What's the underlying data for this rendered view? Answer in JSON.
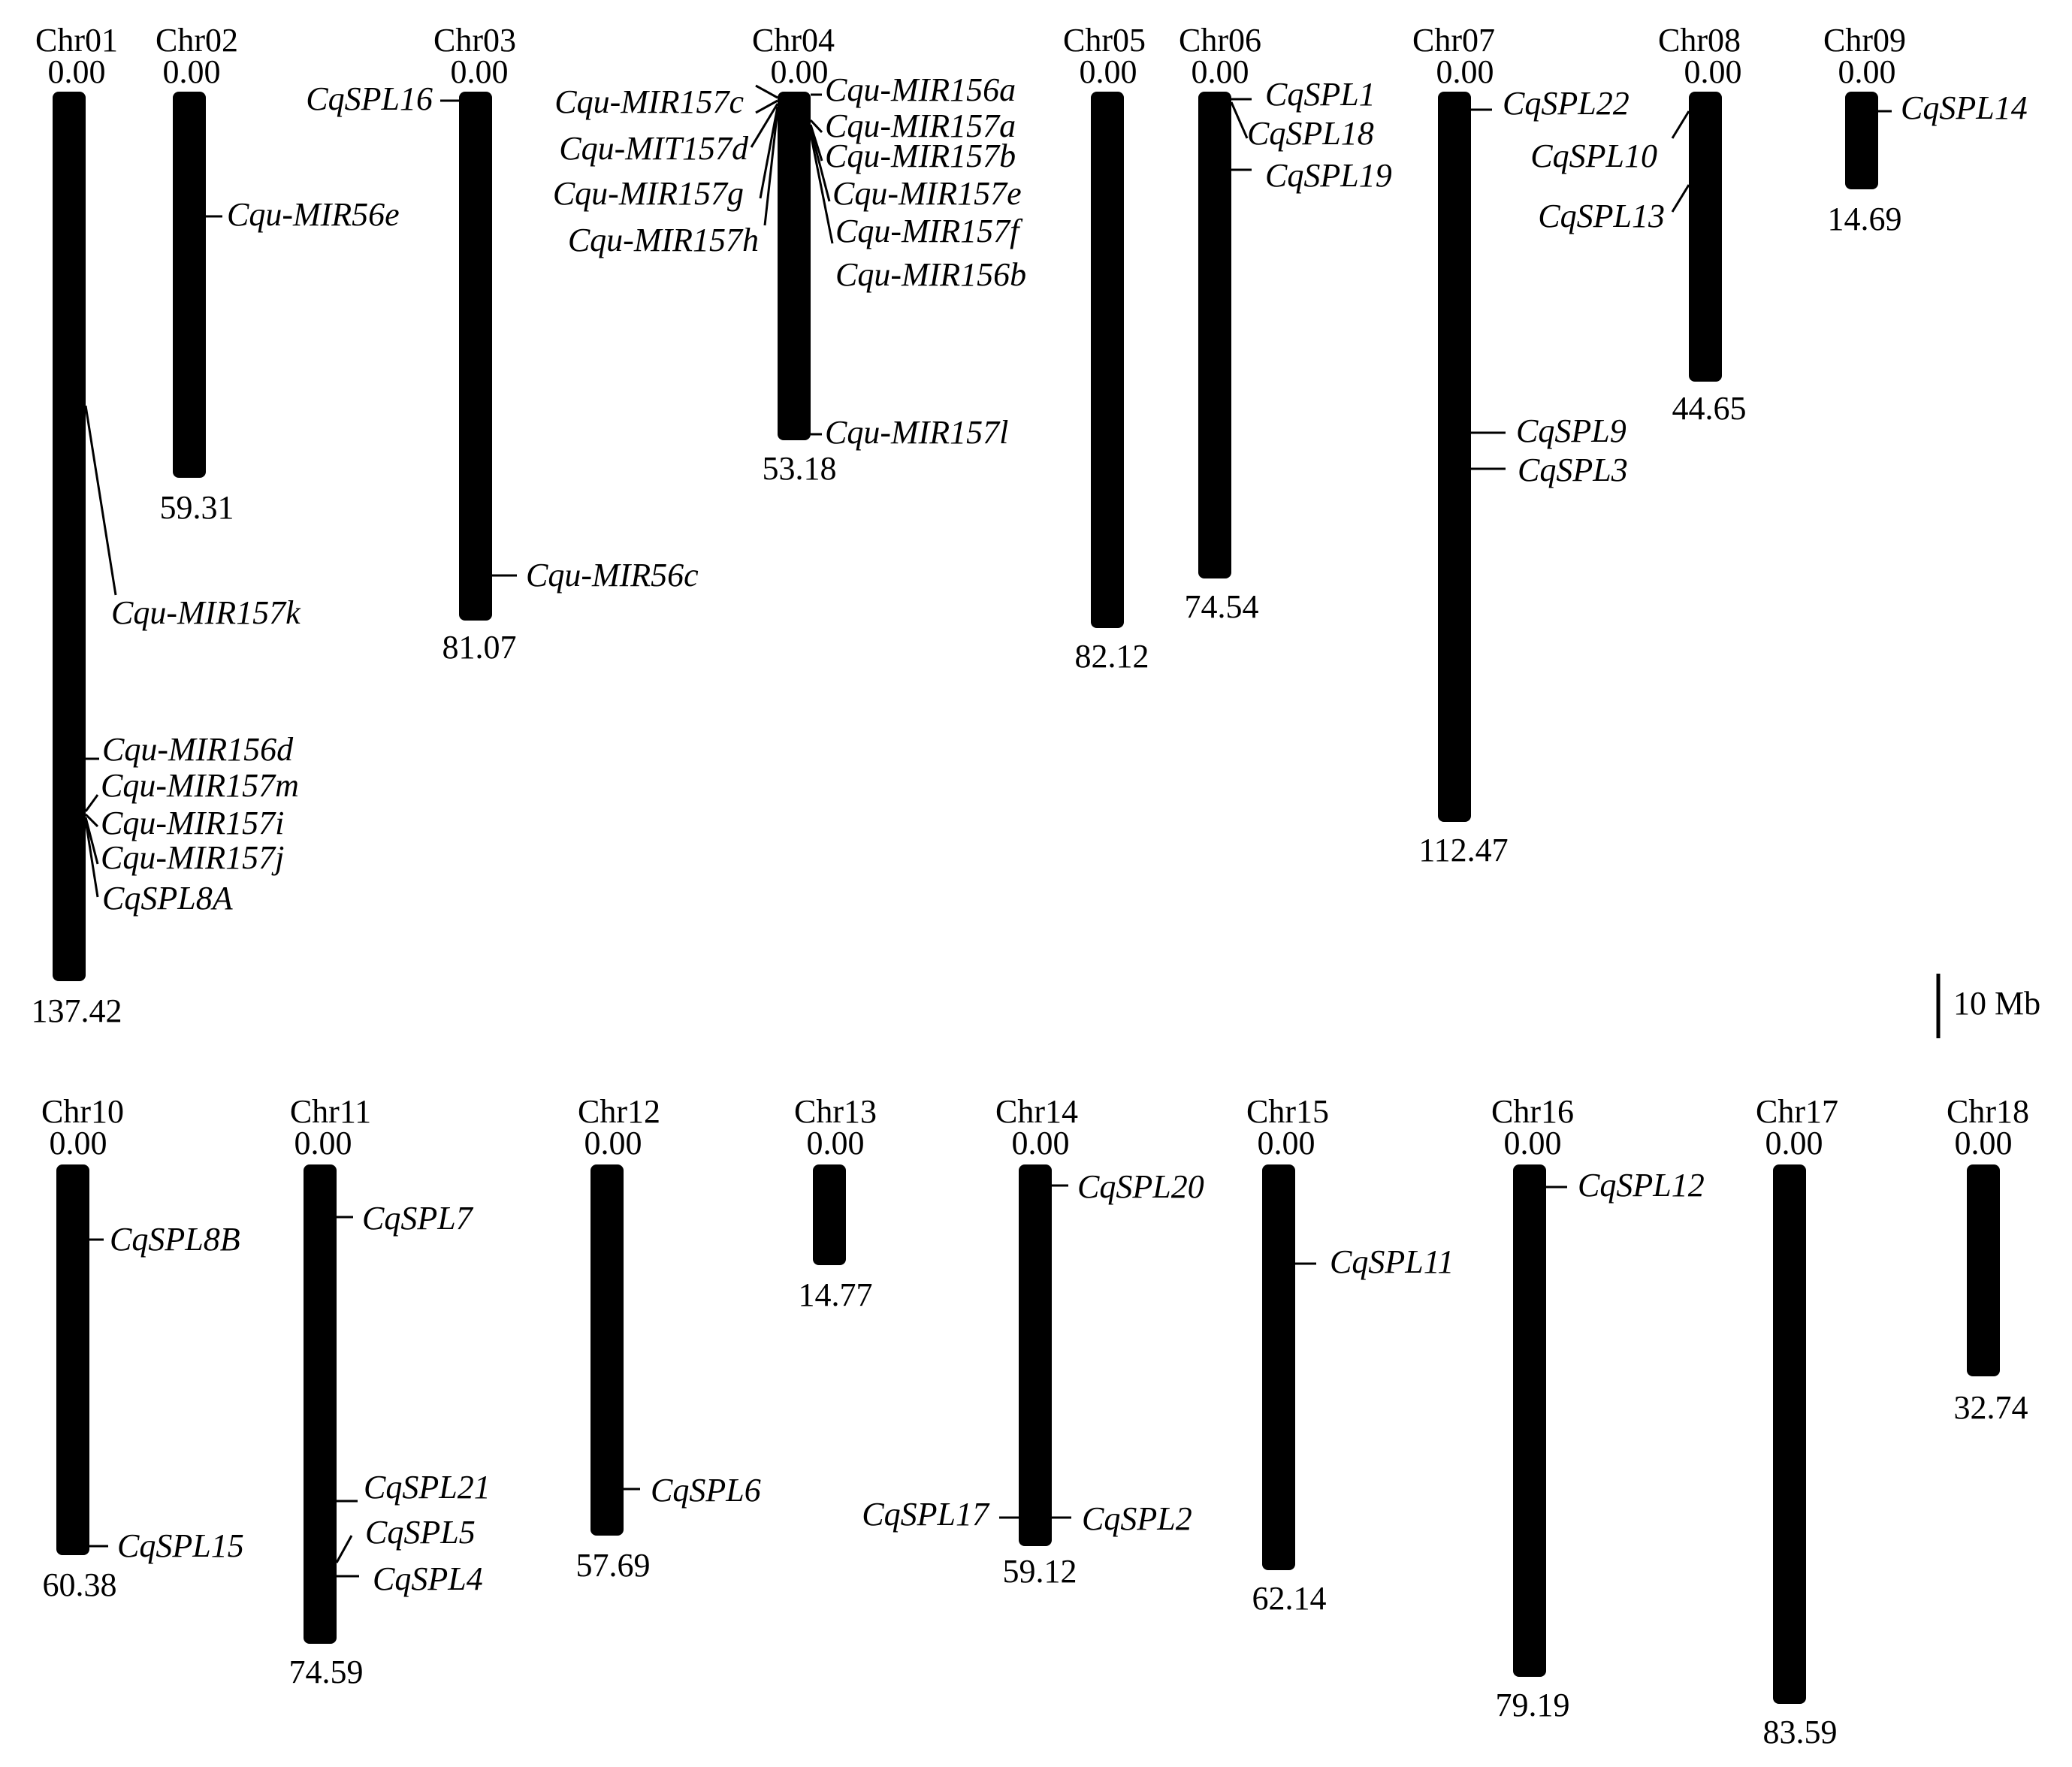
{
  "figure": {
    "scale_bar": {
      "label": "10 Mb",
      "length_mb": 10
    },
    "chromosomes": [
      {
        "name": "Chr01",
        "start": "0.00",
        "end": "137.42",
        "length_mb": 137.42
      },
      {
        "name": "Chr02",
        "start": "0.00",
        "end": "59.31",
        "length_mb": 59.31
      },
      {
        "name": "Chr03",
        "start": "0.00",
        "end": "81.07",
        "length_mb": 81.07
      },
      {
        "name": "Chr04",
        "start": "0.00",
        "end": "53.18",
        "length_mb": 53.18
      },
      {
        "name": "Chr05",
        "start": "0.00",
        "end": "82.12",
        "length_mb": 82.12
      },
      {
        "name": "Chr06",
        "start": "0.00",
        "end": "74.54",
        "length_mb": 74.54
      },
      {
        "name": "Chr07",
        "start": "0.00",
        "end": "112.47",
        "length_mb": 112.47
      },
      {
        "name": "Chr08",
        "start": "0.00",
        "end": "44.65",
        "length_mb": 44.65
      },
      {
        "name": "Chr09",
        "start": "0.00",
        "end": "14.69",
        "length_mb": 14.69
      },
      {
        "name": "Chr10",
        "start": "0.00",
        "end": "60.38",
        "length_mb": 60.38
      },
      {
        "name": "Chr11",
        "start": "0.00",
        "end": "74.59",
        "length_mb": 74.59
      },
      {
        "name": "Chr12",
        "start": "0.00",
        "end": "57.69",
        "length_mb": 57.69
      },
      {
        "name": "Chr13",
        "start": "0.00",
        "end": "14.77",
        "length_mb": 14.77
      },
      {
        "name": "Chr14",
        "start": "0.00",
        "end": "59.12",
        "length_mb": 59.12
      },
      {
        "name": "Chr15",
        "start": "0.00",
        "end": "62.14",
        "length_mb": 62.14
      },
      {
        "name": "Chr16",
        "start": "0.00",
        "end": "79.19",
        "length_mb": 79.19
      },
      {
        "name": "Chr17",
        "start": "0.00",
        "end": "83.59",
        "length_mb": 83.59
      },
      {
        "name": "Chr18",
        "start": "0.00",
        "end": "32.74",
        "length_mb": 32.74
      }
    ],
    "genes": [
      {
        "chr": "Chr01",
        "name": "Cqu-MIR157k",
        "pos_mb": 48.0
      },
      {
        "chr": "Chr01",
        "name": "Cqu-MIR156d",
        "pos_mb": 102.5
      },
      {
        "chr": "Chr01",
        "name": "Cqu-MIR157m",
        "pos_mb": 108.5
      },
      {
        "chr": "Chr01",
        "name": "Cqu-MIR157i",
        "pos_mb": 109.0
      },
      {
        "chr": "Chr01",
        "name": "Cqu-MIR157j",
        "pos_mb": 111.0
      },
      {
        "chr": "Chr01",
        "name": "CqSPL8A",
        "pos_mb": 114.5
      },
      {
        "chr": "Chr02",
        "name": "Cqu-MIR56e",
        "pos_mb": 19.2
      },
      {
        "chr": "Chr03",
        "name": "CqSPL16",
        "pos_mb": 1.5
      },
      {
        "chr": "Chr03",
        "name": "Cqu-MIR56c",
        "pos_mb": 75.0
      },
      {
        "chr": "Chr04",
        "name": "Cqu-MIR157c",
        "pos_mb": 1.0
      },
      {
        "chr": "Chr04",
        "name": "Cqu-MIT157d",
        "pos_mb": 1.2
      },
      {
        "chr": "Chr04",
        "name": "Cqu-MIR157g",
        "pos_mb": 1.4
      },
      {
        "chr": "Chr04",
        "name": "Cqu-MIR157h",
        "pos_mb": 1.6
      },
      {
        "chr": "Chr04",
        "name": "Cqu-MIR156a",
        "pos_mb": 0.5
      },
      {
        "chr": "Chr04",
        "name": "Cqu-MIR157a",
        "pos_mb": 4.8
      },
      {
        "chr": "Chr04",
        "name": "Cqu-MIR157b",
        "pos_mb": 5.4
      },
      {
        "chr": "Chr04",
        "name": "Cqu-MIR157e",
        "pos_mb": 6.0
      },
      {
        "chr": "Chr04",
        "name": "Cqu-MIR157f",
        "pos_mb": 6.5
      },
      {
        "chr": "Chr04",
        "name": "Cqu-MIR156b",
        "pos_mb": 7.0
      },
      {
        "chr": "Chr04",
        "name": "Cqu-MIR157l",
        "pos_mb": 53.0
      },
      {
        "chr": "Chr06",
        "name": "CqSPL1",
        "pos_mb": 1.2
      },
      {
        "chr": "Chr06",
        "name": "CqSPL18",
        "pos_mb": 1.5
      },
      {
        "chr": "Chr06",
        "name": "CqSPL19",
        "pos_mb": 12.0
      },
      {
        "chr": "Chr07",
        "name": "CqSPL22",
        "pos_mb": 2.0
      },
      {
        "chr": "Chr07",
        "name": "CqSPL9",
        "pos_mb": 52.5
      },
      {
        "chr": "Chr07",
        "name": "CqSPL3",
        "pos_mb": 58.0
      },
      {
        "chr": "Chr08",
        "name": "CqSPL10",
        "pos_mb": 3.5
      },
      {
        "chr": "Chr08",
        "name": "CqSPL13",
        "pos_mb": 14.5
      },
      {
        "chr": "Chr09",
        "name": "CqSPL14",
        "pos_mb": 3.0
      },
      {
        "chr": "Chr10",
        "name": "CqSPL8B",
        "pos_mb": 11.5
      },
      {
        "chr": "Chr10",
        "name": "CqSPL15",
        "pos_mb": 60.0
      },
      {
        "chr": "Chr11",
        "name": "CqSPL7",
        "pos_mb": 8.0
      },
      {
        "chr": "Chr11",
        "name": "CqSPL21",
        "pos_mb": 52.0
      },
      {
        "chr": "Chr11",
        "name": "CqSPL5",
        "pos_mb": 60.0
      },
      {
        "chr": "Chr11",
        "name": "CqSPL4",
        "pos_mb": 64.0
      },
      {
        "chr": "Chr12",
        "name": "CqSPL6",
        "pos_mb": 50.0
      },
      {
        "chr": "Chr14",
        "name": "CqSPL20",
        "pos_mb": 2.5
      },
      {
        "chr": "Chr14",
        "name": "CqSPL17",
        "pos_mb": 54.0
      },
      {
        "chr": "Chr14",
        "name": "CqSPL2",
        "pos_mb": 54.0
      },
      {
        "chr": "Chr15",
        "name": "CqSPL11",
        "pos_mb": 15.0
      },
      {
        "chr": "Chr16",
        "name": "CqSPL12",
        "pos_mb": 3.0
      }
    ]
  }
}
